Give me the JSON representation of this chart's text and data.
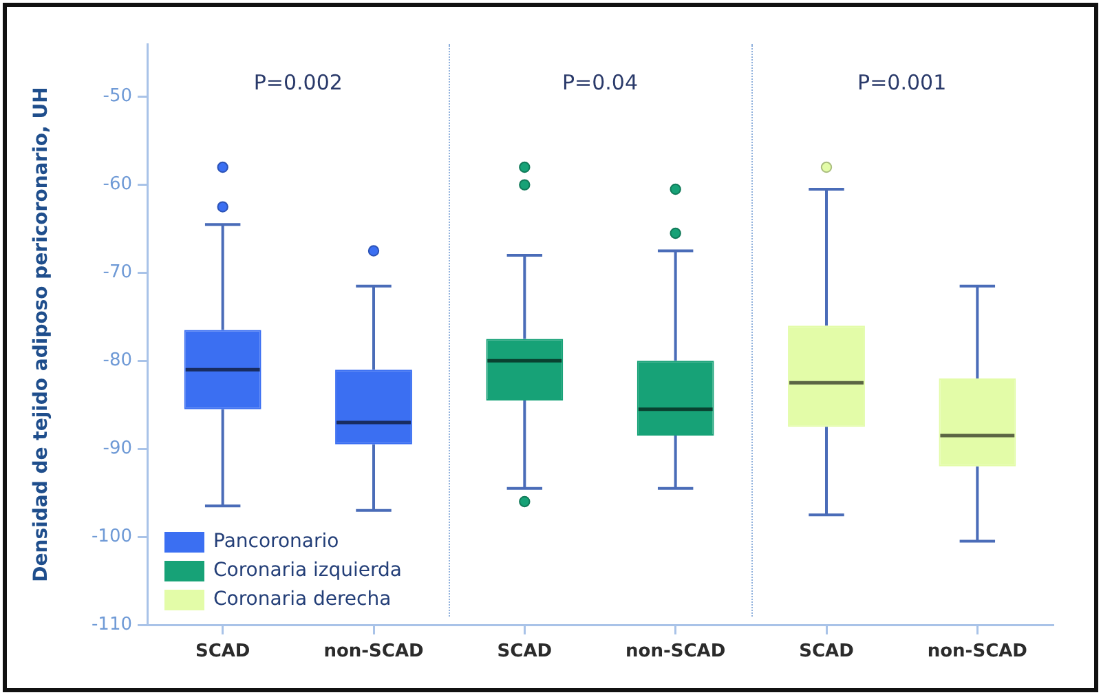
{
  "chart_data": {
    "type": "box",
    "ylabel": "Densidad de tejido adiposo pericoronario, UH",
    "categories": [
      "SCAD",
      "non-SCAD",
      "SCAD",
      "non-SCAD",
      "SCAD",
      "non-SCAD"
    ],
    "series": [
      {
        "name": "Pancoronario",
        "color": "#3b6ff2",
        "boxes": [
          {
            "low": -96.5,
            "q1": -85.5,
            "median": -81,
            "q3": -76.5,
            "high": -64.5,
            "outliers": [
              -58,
              -62.5
            ]
          },
          {
            "low": -97,
            "q1": -89.5,
            "median": -87,
            "q3": -81,
            "high": -71.5,
            "outliers": [
              -67.5
            ]
          },
          null,
          null,
          null,
          null
        ]
      },
      {
        "name": "Coronaria izquierda",
        "color": "#17a277",
        "boxes": [
          null,
          null,
          {
            "low": -94.5,
            "q1": -84.5,
            "median": -80,
            "q3": -77.5,
            "high": -68,
            "outliers": [
              -58,
              -60,
              -96
            ]
          },
          {
            "low": -94.5,
            "q1": -88.5,
            "median": -85.5,
            "q3": -80,
            "high": -67.5,
            "outliers": [
              -60.5,
              -65.5
            ]
          },
          null,
          null
        ]
      },
      {
        "name": "Coronaria derecha",
        "color": "#e3fca8",
        "boxes": [
          null,
          null,
          null,
          null,
          {
            "low": -97.5,
            "q1": -87.5,
            "median": -82.5,
            "q3": -76,
            "high": -60.5,
            "outliers": [
              -58
            ]
          },
          {
            "low": -100.5,
            "q1": -92,
            "median": -88.5,
            "q3": -82,
            "high": -71.5
          }
        ]
      }
    ],
    "ylim": [
      -110,
      -44
    ],
    "yticks": [
      -110,
      -100,
      -90,
      -80,
      -70,
      -60,
      -50
    ],
    "legend": "bottom left",
    "annotations": [
      "P=0.002",
      "P=0.04",
      "P=0.001"
    ]
  }
}
